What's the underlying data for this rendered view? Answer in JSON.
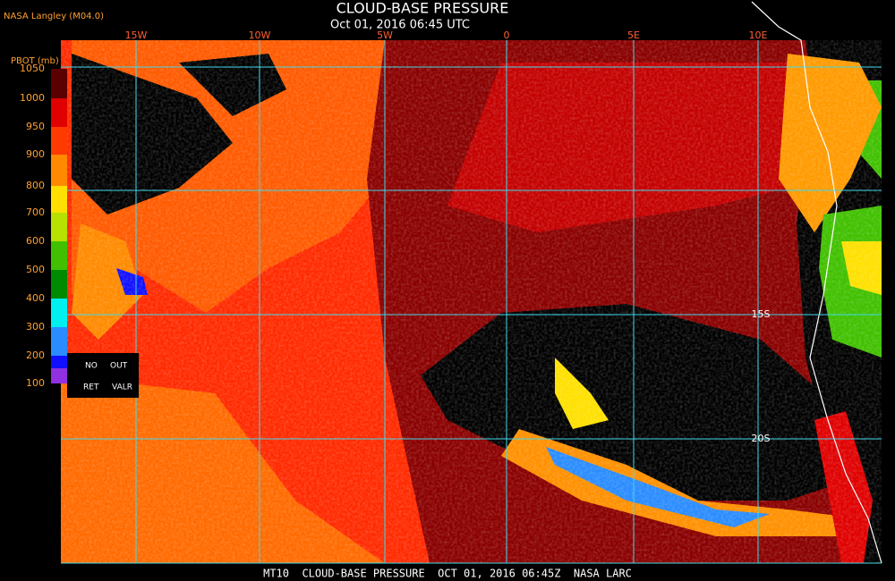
{
  "header": {
    "source": "NASA Langley (M04.0)",
    "title": "CLOUD-BASE PRESSURE",
    "timestamp": "Oct 01, 2016 06:45 UTC"
  },
  "legend": {
    "title": "PBOT (mb)",
    "levels": [
      1050,
      1000,
      950,
      900,
      800,
      700,
      600,
      500,
      400,
      300,
      200,
      100
    ],
    "colors": [
      "#5a0000",
      "#e00000",
      "#ff3a00",
      "#ff8a00",
      "#ffe000",
      "#b8e000",
      "#40c000",
      "#008a00",
      "#00f0f0",
      "#2a8cff",
      "#1010ff"
    ],
    "no_retrieval": [
      "NO",
      "OUT",
      "RET",
      "VALR"
    ]
  },
  "grid": {
    "longitudes": [
      "15W",
      "10W",
      "5W",
      "0",
      "5E",
      "10E"
    ],
    "latitudes": [
      "15S",
      "20S"
    ],
    "color": "#40d8e8"
  },
  "footer": "MT10  CLOUD-BASE PRESSURE  OCT 01, 2016 06:45Z  NASA LARC"
}
